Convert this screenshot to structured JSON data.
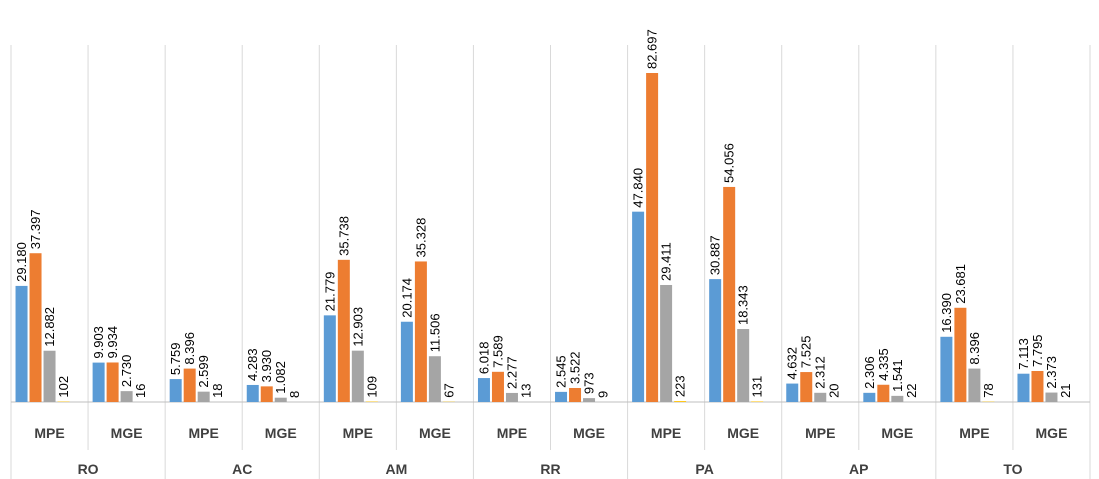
{
  "chart_data": {
    "type": "bar",
    "groups": [
      "RO",
      "AC",
      "AM",
      "RR",
      "PA",
      "AP",
      "TO"
    ],
    "categories": [
      "MPE",
      "MGE"
    ],
    "series_colors": [
      "#5b9bd5",
      "#ed7d31",
      "#a5a5a5",
      "#ffc000"
    ],
    "ylim": [
      0,
      90000
    ],
    "grid": false,
    "legend": "none",
    "values": [
      [
        [
          29180,
          37397,
          12882,
          102
        ],
        [
          9903,
          9934,
          2730,
          16
        ]
      ],
      [
        [
          5759,
          8396,
          2599,
          18
        ],
        [
          4283,
          3930,
          1082,
          8
        ]
      ],
      [
        [
          21779,
          35738,
          12903,
          109
        ],
        [
          20174,
          35328,
          11506,
          67
        ]
      ],
      [
        [
          6018,
          7589,
          2277,
          13
        ],
        [
          2545,
          3522,
          973,
          9
        ]
      ],
      [
        [
          47840,
          82697,
          29411,
          223
        ],
        [
          30887,
          54056,
          18343,
          131
        ]
      ],
      [
        [
          4632,
          7525,
          2312,
          20
        ],
        [
          2306,
          4335,
          1541,
          22
        ]
      ],
      [
        [
          16390,
          23681,
          8396,
          78
        ],
        [
          7113,
          7795,
          2373,
          21
        ]
      ]
    ],
    "labels": [
      [
        [
          "29.180",
          "37.397",
          "12.882",
          "102"
        ],
        [
          "9.903",
          "9.934",
          "2.730",
          "16"
        ]
      ],
      [
        [
          "5.759",
          "8.396",
          "2.599",
          "18"
        ],
        [
          "4.283",
          "3.930",
          "1.082",
          "8"
        ]
      ],
      [
        [
          "21.779",
          "35.738",
          "12.903",
          "109"
        ],
        [
          "20.174",
          "35.328",
          "11.506",
          "67"
        ]
      ],
      [
        [
          "6.018",
          "7.589",
          "2.277",
          "13"
        ],
        [
          "2.545",
          "3.522",
          "973",
          "9"
        ]
      ],
      [
        [
          "47.840",
          "82.697",
          "29.411",
          "223"
        ],
        [
          "30.887",
          "54.056",
          "18.343",
          "131"
        ]
      ],
      [
        [
          "4.632",
          "7.525",
          "2.312",
          "20"
        ],
        [
          "2.306",
          "4.335",
          "1.541",
          "22"
        ]
      ],
      [
        [
          "16.390",
          "23.681",
          "8.396",
          "78"
        ],
        [
          "7.113",
          "7.795",
          "2.373",
          "21"
        ]
      ]
    ]
  }
}
